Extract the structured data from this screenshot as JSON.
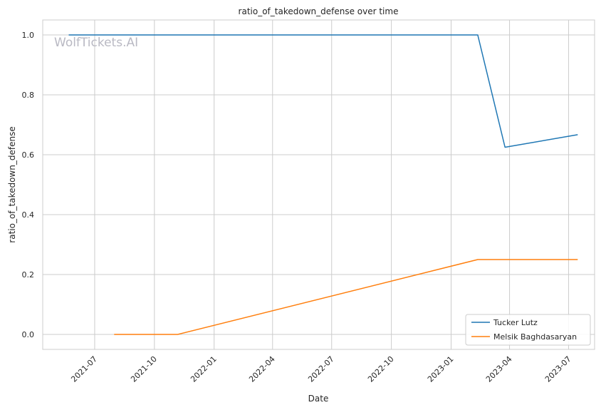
{
  "chart_data": {
    "type": "line",
    "title": "ratio_of_takedown_defense over time",
    "xlabel": "Date",
    "ylabel": "ratio_of_takedown_defense",
    "watermark": "WolfTickets.AI",
    "xlim": [
      "2021-04-12",
      "2023-08-10"
    ],
    "ylim": [
      -0.05,
      1.05
    ],
    "x_ticks": [
      "2021-07-01",
      "2021-10-01",
      "2022-01-01",
      "2022-04-01",
      "2022-07-01",
      "2022-10-01",
      "2023-01-01",
      "2023-04-01",
      "2023-07-01"
    ],
    "x_tick_labels": [
      "2021-07",
      "2021-10",
      "2022-01",
      "2022-04",
      "2022-07",
      "2022-10",
      "2023-01",
      "2023-04",
      "2023-07"
    ],
    "y_ticks": [
      0.0,
      0.2,
      0.4,
      0.6,
      0.8,
      1.0
    ],
    "y_tick_labels": [
      "0.0",
      "0.2",
      "0.4",
      "0.6",
      "0.8",
      "1.0"
    ],
    "grid": true,
    "legend_position": "bottom-right",
    "series": [
      {
        "name": "Tucker Lutz",
        "color": "#1f77b4",
        "points": [
          {
            "x": "2021-05-22",
            "y": 1.0
          },
          {
            "x": "2023-02-11",
            "y": 1.0
          },
          {
            "x": "2023-03-25",
            "y": 0.625
          },
          {
            "x": "2023-07-15",
            "y": 0.667
          }
        ]
      },
      {
        "name": "Melsik Baghdasaryan",
        "color": "#ff7f0e",
        "points": [
          {
            "x": "2021-07-31",
            "y": 0.0
          },
          {
            "x": "2021-11-06",
            "y": 0.0
          },
          {
            "x": "2023-02-11",
            "y": 0.25
          },
          {
            "x": "2023-07-15",
            "y": 0.25
          }
        ]
      }
    ]
  }
}
